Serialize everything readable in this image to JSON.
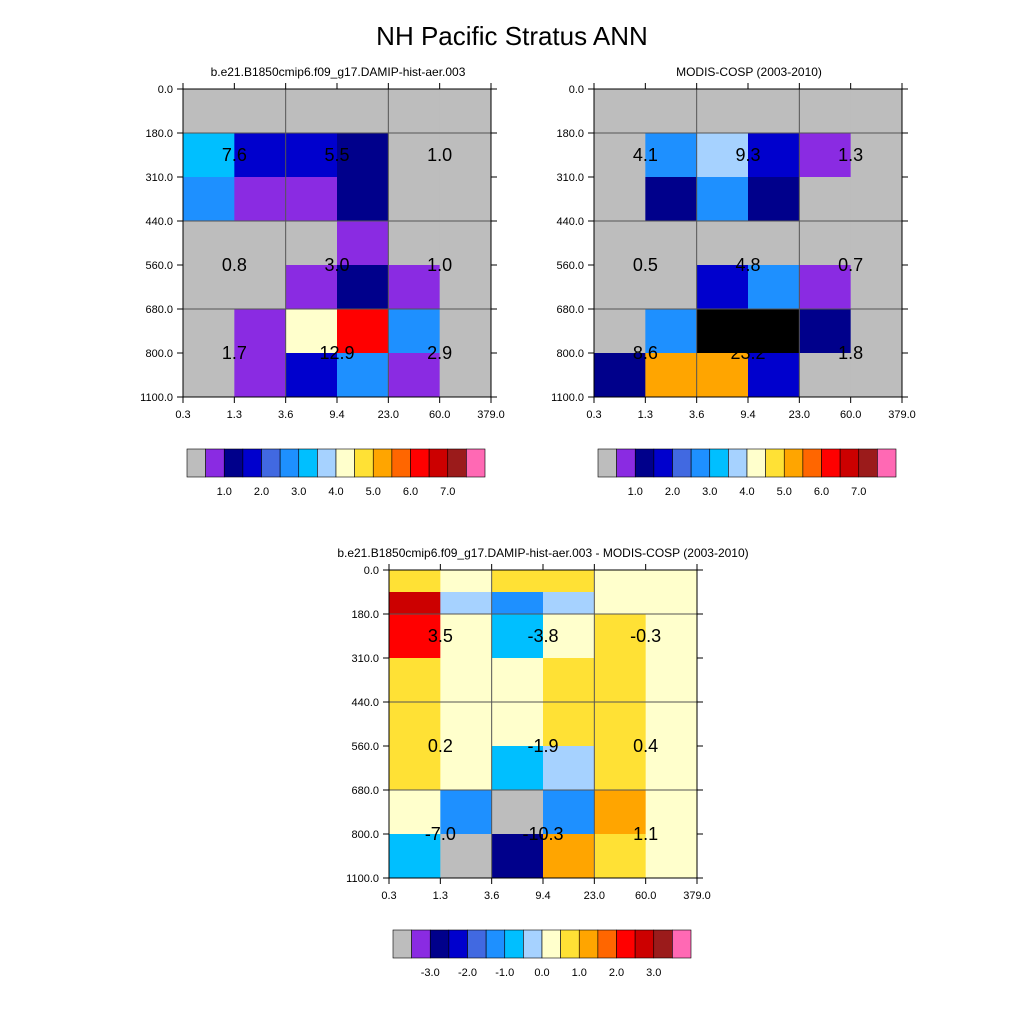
{
  "figure_title": "NH Pacific Stratus ANN",
  "chart_data": [
    {
      "type": "heatmap",
      "title": "b.e21.B1850cmip6.f09_g17.DAMIP-hist-aer.003",
      "x_tick_labels": [
        "0.3",
        "1.3",
        "3.6",
        "9.4",
        "23.0",
        "60.0",
        "379.0"
      ],
      "y_tick_labels": [
        "0.0",
        "180.0",
        "310.0",
        "440.0",
        "560.0",
        "680.0",
        "800.0",
        "1100.0"
      ],
      "cell_color_indices": [
        [
          0,
          0,
          0,
          0,
          0,
          0
        ],
        [
          6,
          3,
          3,
          2,
          0,
          0
        ],
        [
          5,
          1,
          1,
          2,
          0,
          0
        ],
        [
          0,
          0,
          0,
          1,
          0,
          0
        ],
        [
          0,
          0,
          1,
          2,
          1,
          0
        ],
        [
          0,
          1,
          8,
          12,
          5,
          0
        ],
        [
          0,
          1,
          3,
          5,
          1,
          0
        ]
      ],
      "region_values": [
        {
          "label": "7.6",
          "col": 1,
          "row": 1.5
        },
        {
          "label": "5.5",
          "col": 3,
          "row": 1.5
        },
        {
          "label": "1.0",
          "col": 5,
          "row": 1.5
        },
        {
          "label": "0.8",
          "col": 1,
          "row": 4
        },
        {
          "label": "3.0",
          "col": 3,
          "row": 4
        },
        {
          "label": "1.0",
          "col": 5,
          "row": 4
        },
        {
          "label": "1.7",
          "col": 1,
          "row": 6
        },
        {
          "label": "12.9",
          "col": 3,
          "row": 6
        },
        {
          "label": "2.9",
          "col": 5,
          "row": 6
        }
      ],
      "colorbar": "abs"
    },
    {
      "type": "heatmap",
      "title": "MODIS-COSP (2003-2010)",
      "x_tick_labels": [
        "0.3",
        "1.3",
        "3.6",
        "9.4",
        "23.0",
        "60.0",
        "379.0"
      ],
      "y_tick_labels": [
        "0.0",
        "180.0",
        "310.0",
        "440.0",
        "560.0",
        "680.0",
        "800.0",
        "1100.0"
      ],
      "cell_color_indices": [
        [
          0,
          0,
          0,
          0,
          0,
          0
        ],
        [
          0,
          5,
          7,
          3,
          1,
          0
        ],
        [
          0,
          2,
          5,
          2,
          0,
          0
        ],
        [
          0,
          0,
          0,
          0,
          0,
          0
        ],
        [
          0,
          0,
          3,
          5,
          1,
          0
        ],
        [
          0,
          5,
          17,
          16,
          2,
          0
        ],
        [
          2,
          10,
          10,
          3,
          0,
          0
        ]
      ],
      "region_values": [
        {
          "label": "4.1",
          "col": 1,
          "row": 1.5
        },
        {
          "label": "9.3",
          "col": 3,
          "row": 1.5
        },
        {
          "label": "1.3",
          "col": 5,
          "row": 1.5
        },
        {
          "label": "0.5",
          "col": 1,
          "row": 4
        },
        {
          "label": "4.8",
          "col": 3,
          "row": 4
        },
        {
          "label": "0.7",
          "col": 5,
          "row": 4
        },
        {
          "label": "8.6",
          "col": 1,
          "row": 6
        },
        {
          "label": "23.2",
          "col": 3,
          "row": 6
        },
        {
          "label": "1.8",
          "col": 5,
          "row": 6
        }
      ],
      "colorbar": "abs"
    },
    {
      "type": "heatmap",
      "title": "b.e21.B1850cmip6.f09_g17.DAMIP-hist-aer.003 - MODIS-COSP (2003-2010)",
      "x_tick_labels": [
        "0.3",
        "1.3",
        "3.6",
        "9.4",
        "23.0",
        "60.0",
        "379.0"
      ],
      "y_tick_labels": [
        "0.0",
        "180.0",
        "310.0",
        "440.0",
        "560.0",
        "680.0",
        "800.0",
        "1100.0"
      ],
      "cell_color_indices": [
        [
          9,
          8,
          9,
          9,
          8,
          8
        ],
        [
          13,
          7,
          5,
          7,
          8,
          8
        ],
        [
          12,
          8,
          6,
          8,
          9,
          8
        ],
        [
          9,
          8,
          8,
          9,
          9,
          8
        ],
        [
          9,
          8,
          8,
          9,
          9,
          8
        ],
        [
          9,
          8,
          6,
          7,
          9,
          8
        ],
        [
          8,
          5,
          0,
          5,
          10,
          8
        ],
        [
          6,
          0,
          2,
          10,
          9,
          8
        ]
      ],
      "row_edges_index": [
        0,
        0.5,
        1,
        2,
        3,
        4,
        5,
        6,
        7
      ],
      "region_values": [
        {
          "label": "3.5",
          "col": 1,
          "row": 1.5
        },
        {
          "label": "-3.8",
          "col": 3,
          "row": 1.5
        },
        {
          "label": "-0.3",
          "col": 5,
          "row": 1.5
        },
        {
          "label": "0.2",
          "col": 1,
          "row": 4
        },
        {
          "label": "-1.9",
          "col": 3,
          "row": 4
        },
        {
          "label": "0.4",
          "col": 5,
          "row": 4
        },
        {
          "label": "-7.0",
          "col": 1,
          "row": 6
        },
        {
          "label": "-10.3",
          "col": 3,
          "row": 6
        },
        {
          "label": "1.1",
          "col": 5,
          "row": 6
        }
      ],
      "colorbar": "diff"
    }
  ],
  "colorbars": {
    "abs": {
      "colors": [
        "#bdbdbd",
        "#8a2be2",
        "#00008b",
        "#0000cd",
        "#4169e1",
        "#1e90ff",
        "#00bfff",
        "#a6d2ff",
        "#ffffcc",
        "#ffe135",
        "#ffa500",
        "#ff6600",
        "#ff0000",
        "#cc0000",
        "#9b1b1b",
        "#ff69b4"
      ],
      "labels": [
        "1.0",
        "2.0",
        "3.0",
        "4.0",
        "5.0",
        "6.0",
        "7.0"
      ]
    },
    "diff": {
      "colors": [
        "#bdbdbd",
        "#8a2be2",
        "#00008b",
        "#0000cd",
        "#4169e1",
        "#1e90ff",
        "#00bfff",
        "#a6d2ff",
        "#ffffcc",
        "#ffe135",
        "#ffa500",
        "#ff6600",
        "#ff0000",
        "#cc0000",
        "#9b1b1b",
        "#ff69b4"
      ],
      "labels": [
        "-3.0",
        "-2.0",
        "-1.0",
        "0.0",
        "1.0",
        "2.0",
        "3.0"
      ]
    }
  }
}
